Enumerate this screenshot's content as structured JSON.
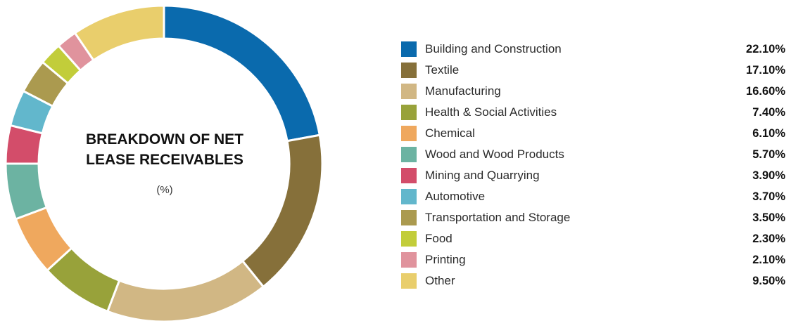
{
  "chart_data": {
    "type": "pie",
    "style": "donut",
    "title": "BREAKDOWN OF NET\nLEASE RECEIVABLES",
    "unit": "(%)",
    "legend_position": "right",
    "categories": [
      "Building and Construction",
      "Textile",
      "Manufacturing",
      "Health & Social Activities",
      "Chemical",
      "Wood and Wood Products",
      "Mining and Quarrying",
      "Automotive",
      "Transportation and Storage",
      "Food",
      "Printing",
      "Other"
    ],
    "values": [
      22.1,
      17.1,
      16.6,
      7.4,
      6.1,
      5.7,
      3.9,
      3.7,
      3.5,
      2.3,
      2.1,
      9.5
    ],
    "value_labels": [
      "22.10%",
      "17.10%",
      "16.60%",
      "7.40%",
      "6.10%",
      "5.70%",
      "3.90%",
      "3.70%",
      "3.50%",
      "2.30%",
      "2.10%",
      "9.50%"
    ],
    "colors": [
      "#0a6aad",
      "#86703a",
      "#d1b784",
      "#98a23a",
      "#efa85e",
      "#6cb3a2",
      "#d34d6a",
      "#62b7cc",
      "#ab9a4f",
      "#c2cd3a",
      "#e0939d",
      "#e9ce6c"
    ]
  }
}
